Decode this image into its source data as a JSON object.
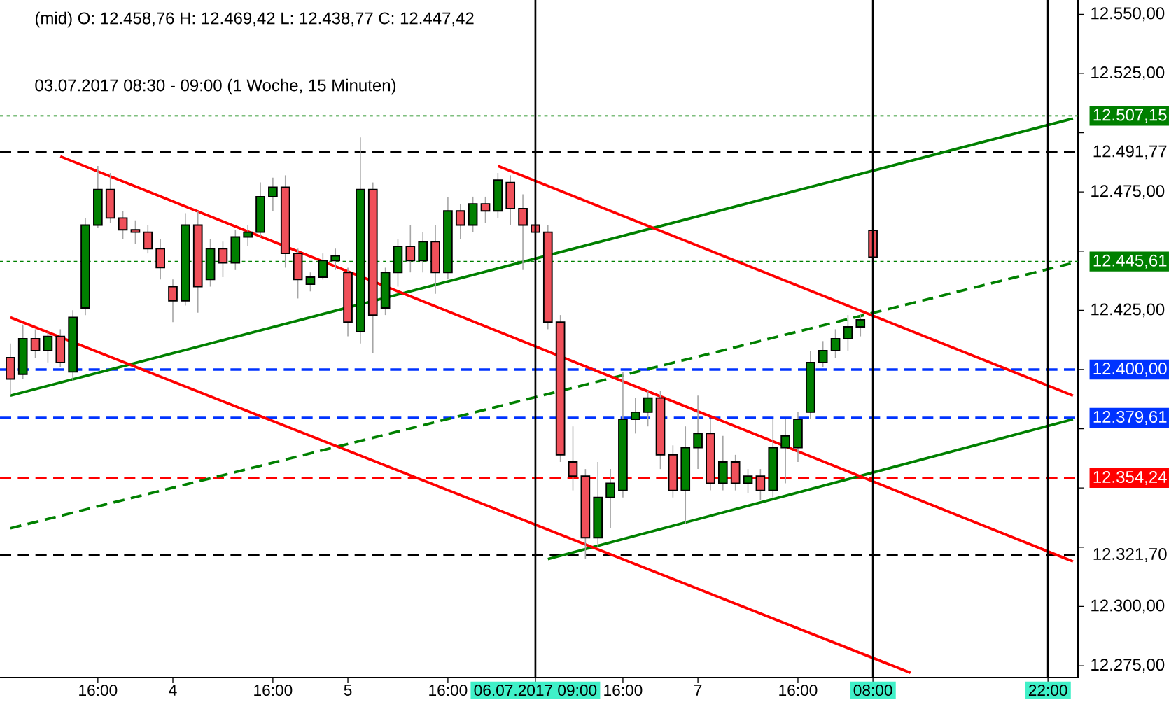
{
  "chart_data": {
    "type": "candlestick",
    "title": "(mid)  O: 12.458,76  H: 12.469,42  L: 12.438,77  C: 12.447,42",
    "subtitle": "03.07.2017 08:30 - 09:00   (1 Woche, 15 Minuten)",
    "ylim": [
      12270,
      12556
    ],
    "yticks": [
      {
        "value": 12275,
        "label": "12.275,00"
      },
      {
        "value": 12300,
        "label": "12.300,00"
      },
      {
        "value": 12325,
        "label": null
      },
      {
        "value": 12350,
        "label": null
      },
      {
        "value": 12375,
        "label": null
      },
      {
        "value": 12400,
        "label": null
      },
      {
        "value": 12425,
        "label": "12.425,00"
      },
      {
        "value": 12450,
        "label": null
      },
      {
        "value": 12475,
        "label": "12.475,00"
      },
      {
        "value": 12500,
        "label": null
      },
      {
        "value": 12525,
        "label": "12.525,00"
      },
      {
        "value": 12550,
        "label": "12.550,00"
      }
    ],
    "categories": [
      null,
      null,
      null,
      null,
      null,
      null,
      null,
      "16:00",
      null,
      null,
      null,
      null,
      null,
      "4",
      null,
      null,
      null,
      null,
      null,
      null,
      null,
      "16:00",
      null,
      null,
      null,
      null,
      null,
      "5",
      null,
      null,
      null,
      null,
      null,
      null,
      null,
      "16:00",
      null,
      null,
      null,
      null,
      null,
      null,
      "06.07.2017 09:00",
      null,
      null,
      null,
      null,
      null,
      null,
      "16:00",
      null,
      null,
      null,
      null,
      null,
      "7",
      null,
      null,
      null,
      null,
      null,
      null,
      null,
      "16:00",
      null,
      null,
      null,
      null,
      null,
      "08:00",
      null,
      null,
      null,
      null,
      null,
      null,
      null,
      null,
      null,
      null,
      null,
      null,
      null,
      "22:00",
      null,
      null
    ],
    "ohlc": [
      [
        12405,
        12411,
        12389,
        12396
      ],
      [
        12398,
        12419,
        12396,
        12413
      ],
      [
        12413,
        12417,
        12405,
        12408
      ],
      [
        12408,
        12416,
        12403,
        12414
      ],
      [
        12414,
        12417,
        12401,
        12403
      ],
      [
        12399,
        12425,
        12395,
        12422
      ],
      [
        12426,
        12464,
        12423,
        12461
      ],
      [
        12461,
        12486,
        12460,
        12476
      ],
      [
        12476,
        12483,
        12462,
        12464
      ],
      [
        12464,
        12467,
        12455,
        12459
      ],
      [
        12459,
        12463,
        12453,
        12458
      ],
      [
        12458,
        12461,
        12449,
        12451
      ],
      [
        12451,
        12455,
        12438,
        12443
      ],
      [
        12435,
        12438,
        12420,
        12429
      ],
      [
        12429,
        12466,
        12427,
        12461
      ],
      [
        12461,
        12467,
        12424,
        12435
      ],
      [
        12438,
        12455,
        12435,
        12451
      ],
      [
        12451,
        12454,
        12439,
        12445
      ],
      [
        12445,
        12459,
        12442,
        12456
      ],
      [
        12456,
        12461,
        12452,
        12458
      ],
      [
        12458,
        12479,
        12456,
        12473
      ],
      [
        12473,
        12481,
        12467,
        12477
      ],
      [
        12477,
        12482,
        12443,
        12449
      ],
      [
        12449,
        12451,
        12430,
        12438
      ],
      [
        12436,
        12441,
        12433,
        12439
      ],
      [
        12439,
        12449,
        12438,
        12446
      ],
      [
        12446,
        12451,
        12442,
        12448
      ],
      [
        12441,
        12443,
        12414,
        12420
      ],
      [
        12416,
        12498,
        12411,
        12476
      ],
      [
        12476,
        12479,
        12407,
        12423
      ],
      [
        12426,
        12443,
        12423,
        12441
      ],
      [
        12441,
        12455,
        12435,
        12452
      ],
      [
        12452,
        12461,
        12441,
        12446
      ],
      [
        12446,
        12458,
        12441,
        12454
      ],
      [
        12454,
        12461,
        12432,
        12441
      ],
      [
        12441,
        12473,
        12438,
        12467
      ],
      [
        12467,
        12470,
        12455,
        12461
      ],
      [
        12461,
        12473,
        12458,
        12470
      ],
      [
        12470,
        12473,
        12462,
        12467
      ],
      [
        12467,
        12483,
        12464,
        12480
      ],
      [
        12479,
        12482,
        12461,
        12468
      ],
      [
        12468,
        12474,
        12442,
        12461
      ],
      [
        12461,
        12471,
        12441,
        12458
      ],
      [
        12458,
        12461,
        12417,
        12420
      ],
      [
        12420,
        12423,
        12361,
        12364
      ],
      [
        12361,
        12376,
        12349,
        12355
      ],
      [
        12355,
        12358,
        12320,
        12329
      ],
      [
        12329,
        12361,
        12325,
        12346
      ],
      [
        12346,
        12358,
        12333,
        12352
      ],
      [
        12349,
        12399,
        12346,
        12379
      ],
      [
        12379,
        12388,
        12373,
        12382
      ],
      [
        12382,
        12391,
        12376,
        12388
      ],
      [
        12388,
        12391,
        12358,
        12364
      ],
      [
        12364,
        12368,
        12346,
        12349
      ],
      [
        12349,
        12376,
        12335,
        12367
      ],
      [
        12367,
        12389,
        12358,
        12373
      ],
      [
        12373,
        12379,
        12349,
        12352
      ],
      [
        12352,
        12372,
        12349,
        12361
      ],
      [
        12361,
        12364,
        12349,
        12352
      ],
      [
        12352,
        12358,
        12348,
        12355
      ],
      [
        12355,
        12358,
        12345,
        12349
      ],
      [
        12349,
        12379,
        12346,
        12367
      ],
      [
        12367,
        12379,
        12352,
        12372
      ],
      [
        12367,
        12382,
        12361,
        12379
      ],
      [
        12382,
        12408,
        12379,
        12403
      ],
      [
        12403,
        12412,
        12401,
        12408
      ],
      [
        12408,
        12417,
        12405,
        12413
      ],
      [
        12413,
        12423,
        12408,
        12418
      ],
      [
        12418,
        12423,
        12414,
        12421
      ],
      [
        12458.76,
        12469.42,
        12438.77,
        12447.42
      ],
      null,
      null,
      null,
      null,
      null,
      null,
      null,
      null,
      null,
      null,
      null,
      null,
      null,
      null,
      null,
      null
    ],
    "series": [
      {
        "type": "line",
        "color": "#008000",
        "line_style": "solid",
        "values": [
          12389,
          null,
          null,
          null,
          null,
          null,
          null,
          null,
          null,
          null,
          null,
          null,
          null,
          null,
          null,
          null,
          null,
          null,
          null,
          null,
          null,
          null,
          null,
          null,
          null,
          null,
          null,
          null,
          null,
          null,
          null,
          null,
          null,
          null,
          null,
          null,
          null,
          null,
          null,
          null,
          null,
          null,
          null,
          null,
          null,
          null,
          null,
          null,
          null,
          null,
          null,
          null,
          null,
          null,
          null,
          null,
          null,
          null,
          null,
          null,
          null,
          null,
          null,
          null,
          null,
          null,
          null,
          null,
          null,
          null,
          null,
          null,
          null,
          null,
          null,
          null,
          null,
          null,
          null,
          null,
          null,
          null,
          null,
          null,
          null,
          12506
        ]
      },
      {
        "type": "line",
        "color": "#008000",
        "line_style": "dashed",
        "values": [
          12333,
          null,
          null,
          null,
          null,
          null,
          null,
          null,
          null,
          null,
          null,
          null,
          null,
          null,
          null,
          null,
          null,
          null,
          null,
          null,
          null,
          null,
          null,
          null,
          null,
          null,
          null,
          null,
          null,
          null,
          null,
          null,
          null,
          null,
          null,
          null,
          null,
          null,
          null,
          null,
          null,
          null,
          null,
          null,
          null,
          null,
          null,
          null,
          null,
          null,
          null,
          null,
          null,
          null,
          null,
          null,
          null,
          null,
          null,
          null,
          null,
          null,
          null,
          null,
          null,
          null,
          null,
          null,
          null,
          null,
          null,
          null,
          null,
          null,
          null,
          null,
          null,
          null,
          null,
          null,
          null,
          null,
          null,
          null,
          null,
          12445
        ]
      },
      {
        "type": "line",
        "color": "#008000",
        "line_style": "solid",
        "values": [
          null,
          null,
          null,
          null,
          null,
          null,
          null,
          null,
          null,
          null,
          null,
          null,
          null,
          null,
          null,
          null,
          null,
          null,
          null,
          null,
          null,
          null,
          null,
          null,
          null,
          null,
          null,
          null,
          null,
          null,
          null,
          null,
          null,
          null,
          null,
          null,
          null,
          null,
          null,
          null,
          null,
          null,
          null,
          12320,
          null,
          null,
          null,
          null,
          null,
          null,
          null,
          null,
          null,
          null,
          null,
          null,
          null,
          null,
          null,
          null,
          null,
          null,
          null,
          null,
          null,
          null,
          null,
          null,
          null,
          null,
          null,
          null,
          null,
          null,
          null,
          null,
          null,
          null,
          null,
          null,
          null,
          null,
          null,
          null,
          null,
          12379
        ]
      },
      {
        "type": "line",
        "color": "#ff0000",
        "line_style": "solid",
        "values": [
          null,
          null,
          null,
          null,
          12490,
          null,
          null,
          null,
          null,
          null,
          null,
          null,
          null,
          null,
          null,
          null,
          null,
          null,
          null,
          null,
          null,
          null,
          null,
          null,
          null,
          null,
          null,
          null,
          null,
          null,
          null,
          null,
          null,
          null,
          null,
          null,
          null,
          null,
          null,
          null,
          null,
          null,
          null,
          null,
          null,
          null,
          null,
          null,
          null,
          null,
          null,
          null,
          null,
          null,
          null,
          null,
          null,
          null,
          null,
          null,
          null,
          null,
          null,
          null,
          null,
          null,
          null,
          null,
          null,
          null,
          null,
          null,
          null,
          null,
          null,
          null,
          null,
          null,
          null,
          null,
          null,
          null,
          null,
          null,
          null,
          12319
        ]
      },
      {
        "type": "line",
        "color": "#ff0000",
        "line_style": "solid",
        "values": [
          null,
          null,
          null,
          null,
          null,
          null,
          null,
          null,
          null,
          null,
          null,
          null,
          null,
          null,
          null,
          null,
          null,
          null,
          null,
          null,
          null,
          null,
          null,
          null,
          null,
          null,
          null,
          null,
          null,
          null,
          null,
          null,
          null,
          null,
          null,
          null,
          null,
          null,
          null,
          12486,
          null,
          null,
          null,
          null,
          null,
          null,
          null,
          null,
          null,
          null,
          null,
          null,
          null,
          null,
          null,
          null,
          null,
          null,
          null,
          null,
          null,
          null,
          null,
          null,
          null,
          null,
          null,
          null,
          null,
          null,
          null,
          null,
          null,
          null,
          null,
          null,
          null,
          null,
          null,
          null,
          null,
          null,
          null,
          null,
          null,
          12389
        ]
      },
      {
        "type": "line",
        "color": "#ff0000",
        "line_style": "solid",
        "values": [
          12422,
          null,
          null,
          null,
          null,
          null,
          null,
          null,
          null,
          null,
          null,
          null,
          null,
          null,
          null,
          null,
          null,
          null,
          null,
          null,
          null,
          null,
          null,
          null,
          null,
          null,
          null,
          null,
          null,
          null,
          null,
          null,
          null,
          null,
          null,
          null,
          null,
          null,
          null,
          null,
          null,
          null,
          null,
          null,
          null,
          null,
          null,
          null,
          null,
          null,
          null,
          null,
          null,
          null,
          null,
          null,
          null,
          null,
          null,
          null,
          null,
          null,
          null,
          null,
          null,
          null,
          null,
          null,
          null,
          null,
          null,
          null,
          12272,
          null,
          null,
          null,
          null,
          null,
          null,
          null,
          null,
          null,
          null,
          null,
          null,
          null
        ]
      }
    ],
    "ref_lines": [
      {
        "axis": "y",
        "value": 12507.15,
        "label": "12.507,15",
        "color": "#008000",
        "line_style": "dotted"
      },
      {
        "axis": "y",
        "value": 12491.77,
        "label": "12.491,77",
        "color": "#000000",
        "line_style": "dashed"
      },
      {
        "axis": "y",
        "value": 12445.61,
        "label": "12.445,61",
        "color": "#008000",
        "line_style": "dotted"
      },
      {
        "axis": "y",
        "value": 12400,
        "label": "12.400,00",
        "color": "#0033ff",
        "line_style": "dashed"
      },
      {
        "axis": "y",
        "value": 12379.61,
        "label": "12.379,61",
        "color": "#0033ff",
        "line_style": "dashed"
      },
      {
        "axis": "y",
        "value": 12354.24,
        "label": "12.354,24",
        "color": "#ff0000",
        "line_style": "dashed"
      },
      {
        "axis": "y",
        "value": 12321.7,
        "label": "12.321,70",
        "color": "#000000",
        "line_style": "dashed"
      },
      {
        "axis": "x",
        "value": "06.07.2017 09:00",
        "color": "#000000",
        "line_style": "solid"
      },
      {
        "axis": "x",
        "value": "08:00",
        "color": "#000000",
        "line_style": "solid"
      },
      {
        "axis": "x",
        "value": "22:00",
        "color": "#000000",
        "line_style": "solid"
      }
    ]
  }
}
